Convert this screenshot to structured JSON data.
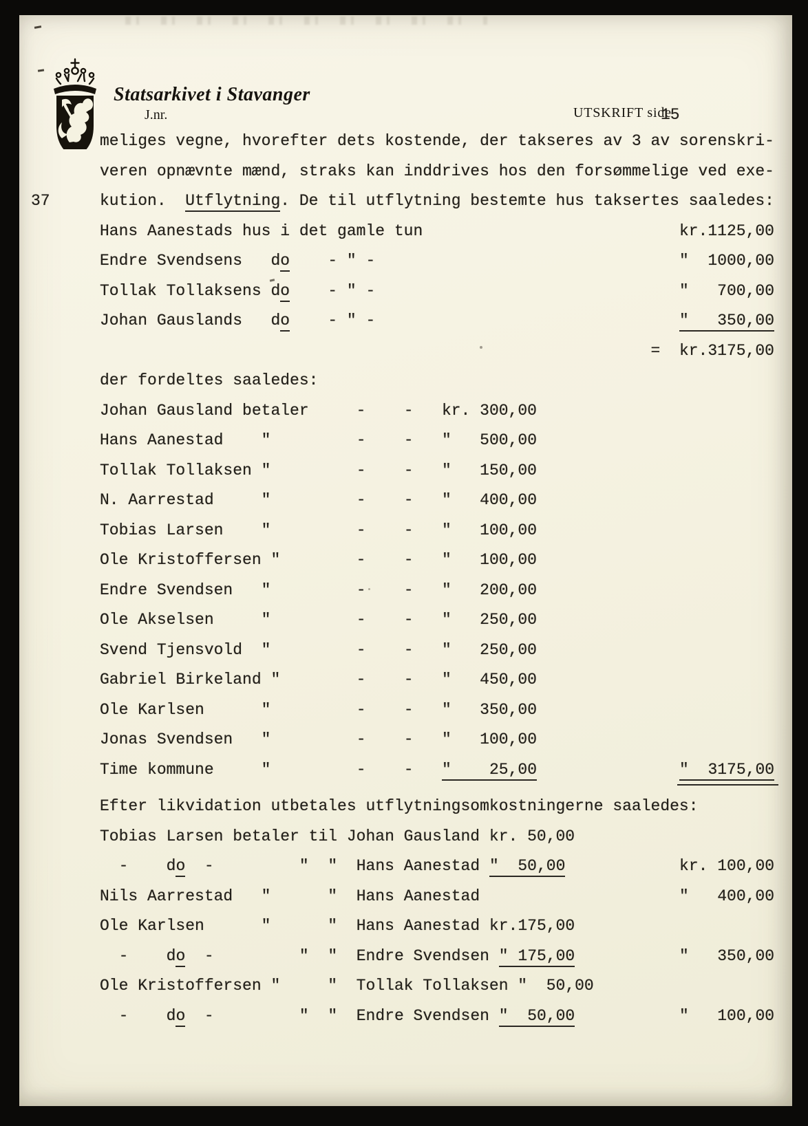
{
  "colors": {
    "scan_background": "#0b0a08",
    "paper": "#f5f2e1",
    "ink": "#24211b"
  },
  "header": {
    "archive_name": "Statsarkivet i Stavanger",
    "journal_label": "J.nr.",
    "doc_type_label": "UTSKRIFT side",
    "page_number": "15",
    "margin_number": "37",
    "coat_of_arms_icon": "norwegian-lion-coat-of-arms"
  },
  "document": {
    "sections": [
      {
        "name": "paragraph",
        "lines": [
          [
            {
              "t": "meliges vegne, hvorefter dets kostende, der takseres av 3 av sorenskri-"
            }
          ],
          [
            {
              "t": "veren opnævnte mænd, straks kan inddrives hos den forsømmelige ved exe-"
            }
          ],
          [
            {
              "t": "kution.  "
            },
            {
              "t": "Utflytning",
              "u": 1
            },
            {
              "t": ". De til utflytning bestemte hus taksertes saaledes:"
            }
          ]
        ]
      },
      {
        "name": "house-taxation",
        "lines": [
          [
            {
              "t": "Hans Aanestads hus i det gamle tun"
            },
            {
              "p": 27
            },
            {
              "t": "kr.1125,00"
            }
          ],
          [
            {
              "t": "Endre Svendsens"
            },
            {
              "p": 3
            },
            {
              "t": "d"
            },
            {
              "t": "o",
              "u": 1
            },
            {
              "p": 4
            },
            {
              "t": "- \" -"
            },
            {
              "p": 32
            },
            {
              "t": "\"  1000,00"
            }
          ],
          [
            {
              "t": "Tollak Tollaksens d"
            },
            {
              "t": "o",
              "u": 1
            },
            {
              "p": 4
            },
            {
              "t": "- \" -"
            },
            {
              "p": 32
            },
            {
              "t": "\"   700,00"
            }
          ],
          [
            {
              "t": "Johan Gauslands"
            },
            {
              "p": 3
            },
            {
              "t": "d"
            },
            {
              "t": "o",
              "u": 1
            },
            {
              "p": 4
            },
            {
              "t": "- \" -"
            },
            {
              "p": 32
            },
            {
              "t": "\"   350,00",
              "u": 1
            }
          ],
          [
            {
              "p": 58
            },
            {
              "t": "=  kr.3175,00"
            }
          ]
        ]
      },
      {
        "name": "distribution",
        "lines": [
          [
            {
              "t": "der fordeltes saaledes:"
            }
          ],
          [
            {
              "t": "Johan Gausland betaler"
            },
            {
              "p": 5
            },
            {
              "t": "-"
            },
            {
              "p": 4
            },
            {
              "t": "-"
            },
            {
              "p": 3
            },
            {
              "t": "kr. 300,00"
            }
          ],
          [
            {
              "t": "Hans Aanestad"
            },
            {
              "p": 4
            },
            {
              "t": "\""
            },
            {
              "p": 9
            },
            {
              "t": "-"
            },
            {
              "p": 4
            },
            {
              "t": "-"
            },
            {
              "p": 3
            },
            {
              "t": "\"   500,00"
            }
          ],
          [
            {
              "t": "Tollak Tollaksen \""
            },
            {
              "p": 9
            },
            {
              "t": "-"
            },
            {
              "p": 4
            },
            {
              "t": "-"
            },
            {
              "p": 3
            },
            {
              "t": "\"   150,00"
            }
          ],
          [
            {
              "t": "N. Aarrestad"
            },
            {
              "p": 5
            },
            {
              "t": "\""
            },
            {
              "p": 9
            },
            {
              "t": "-"
            },
            {
              "p": 4
            },
            {
              "t": "-"
            },
            {
              "p": 3
            },
            {
              "t": "\"   400,00"
            }
          ],
          [
            {
              "t": "Tobias Larsen"
            },
            {
              "p": 4
            },
            {
              "t": "\""
            },
            {
              "p": 9
            },
            {
              "t": "-"
            },
            {
              "p": 4
            },
            {
              "t": "-"
            },
            {
              "p": 3
            },
            {
              "t": "\"   100,00"
            }
          ],
          [
            {
              "t": "Ole Kristoffersen \""
            },
            {
              "p": 8
            },
            {
              "t": "-"
            },
            {
              "p": 4
            },
            {
              "t": "-"
            },
            {
              "p": 3
            },
            {
              "t": "\"   100,00"
            }
          ],
          [
            {
              "t": "Endre Svendsen"
            },
            {
              "p": 3
            },
            {
              "t": "\""
            },
            {
              "p": 9
            },
            {
              "t": "-"
            },
            {
              "p": 4
            },
            {
              "t": "-"
            },
            {
              "p": 3
            },
            {
              "t": "\"   200,00"
            }
          ],
          [
            {
              "t": "Ole Akselsen"
            },
            {
              "p": 5
            },
            {
              "t": "\""
            },
            {
              "p": 9
            },
            {
              "t": "-"
            },
            {
              "p": 4
            },
            {
              "t": "-"
            },
            {
              "p": 3
            },
            {
              "t": "\"   250,00"
            }
          ],
          [
            {
              "t": "Svend Tjensvold  \""
            },
            {
              "p": 9
            },
            {
              "t": "-"
            },
            {
              "p": 4
            },
            {
              "t": "-"
            },
            {
              "p": 3
            },
            {
              "t": "\"   250,00"
            }
          ],
          [
            {
              "t": "Gabriel Birkeland \""
            },
            {
              "p": 8
            },
            {
              "t": "-"
            },
            {
              "p": 4
            },
            {
              "t": "-"
            },
            {
              "p": 3
            },
            {
              "t": "\"   450,00"
            }
          ],
          [
            {
              "t": "Ole Karlsen"
            },
            {
              "p": 6
            },
            {
              "t": "\""
            },
            {
              "p": 9
            },
            {
              "t": "-"
            },
            {
              "p": 4
            },
            {
              "t": "-"
            },
            {
              "p": 3
            },
            {
              "t": "\"   350,00"
            }
          ],
          [
            {
              "t": "Jonas Svendsen"
            },
            {
              "p": 3
            },
            {
              "t": "\""
            },
            {
              "p": 9
            },
            {
              "t": "-"
            },
            {
              "p": 4
            },
            {
              "t": "-"
            },
            {
              "p": 3
            },
            {
              "t": "\"   100,00"
            }
          ],
          [
            {
              "t": "Time kommune"
            },
            {
              "p": 5
            },
            {
              "t": "\""
            },
            {
              "p": 9
            },
            {
              "t": "-"
            },
            {
              "p": 4
            },
            {
              "t": "-"
            },
            {
              "p": 3
            },
            {
              "t": "\"    25,00",
              "u": 1
            },
            {
              "p": 15
            },
            {
              "t": "\"  3175,00",
              "du": 1
            }
          ]
        ]
      },
      {
        "name": "liquidation",
        "lines": [
          [
            {
              "t": "Efter likvidation utbetales utflytningsomkostningerne saaledes:"
            }
          ],
          [
            {
              "t": "Tobias Larsen betaler til Johan Gausland kr. 50,00"
            }
          ],
          [
            {
              "p": 2
            },
            {
              "t": "-"
            },
            {
              "p": 4
            },
            {
              "t": "d"
            },
            {
              "t": "o",
              "u": 1
            },
            {
              "p": 2
            },
            {
              "t": "-"
            },
            {
              "p": 9
            },
            {
              "t": "\"  \"  Hans Aanestad "
            },
            {
              "t": "\"  50,00",
              "u": 1
            },
            {
              "p": 12
            },
            {
              "t": "kr. 100,00"
            }
          ],
          [
            {
              "t": "Nils Aarrestad"
            },
            {
              "p": 3
            },
            {
              "t": "\""
            },
            {
              "p": 6
            },
            {
              "t": "\"  Hans Aanestad"
            },
            {
              "p": 21
            },
            {
              "t": "\"   400,00"
            }
          ],
          [
            {
              "t": "Ole Karlsen"
            },
            {
              "p": 6
            },
            {
              "t": "\""
            },
            {
              "p": 6
            },
            {
              "t": "\"  Hans Aanestad kr.175,00"
            }
          ],
          [
            {
              "p": 2
            },
            {
              "t": "-"
            },
            {
              "p": 4
            },
            {
              "t": "d"
            },
            {
              "t": "o",
              "u": 1
            },
            {
              "p": 2
            },
            {
              "t": "-"
            },
            {
              "p": 9
            },
            {
              "t": "\"  \"  Endre Svendsen "
            },
            {
              "t": "\" 175,00",
              "u": 1
            },
            {
              "p": 11
            },
            {
              "t": "\"   350,00"
            }
          ],
          [
            {
              "t": "Ole Kristoffersen \""
            },
            {
              "p": 5
            },
            {
              "t": "\"  Tollak Tollaksen \"  50,00"
            }
          ],
          [
            {
              "p": 2
            },
            {
              "t": "-"
            },
            {
              "p": 4
            },
            {
              "t": "d"
            },
            {
              "t": "o",
              "u": 1
            },
            {
              "p": 2
            },
            {
              "t": "-"
            },
            {
              "p": 9
            },
            {
              "t": "\"  \"  Endre Svendsen "
            },
            {
              "t": "\"  50,00",
              "u": 1
            },
            {
              "p": 11
            },
            {
              "t": "\"   100,00"
            }
          ]
        ]
      }
    ]
  }
}
